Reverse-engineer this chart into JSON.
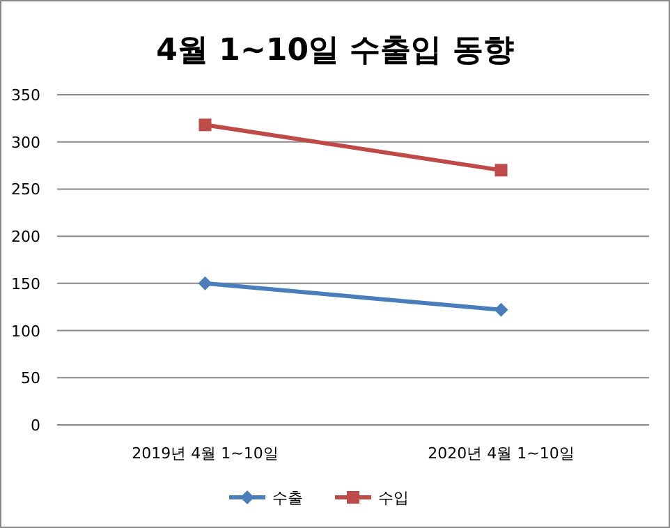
{
  "chart_data": {
    "type": "line",
    "title": "4월 1~10일 수출입 동향",
    "categories": [
      "2019년 4월 1~10일",
      "2020년 4월 1~10일"
    ],
    "series": [
      {
        "name": "수출",
        "color": "#4a7ebb",
        "marker": "diamond",
        "values": [
          150,
          122
        ]
      },
      {
        "name": "수입",
        "color": "#be4b48",
        "marker": "square",
        "values": [
          318,
          270
        ]
      }
    ],
    "ylim": [
      0,
      350
    ],
    "yticks": [
      0,
      50,
      100,
      150,
      200,
      250,
      300,
      350
    ],
    "grid": "y",
    "legend": "bottom"
  }
}
